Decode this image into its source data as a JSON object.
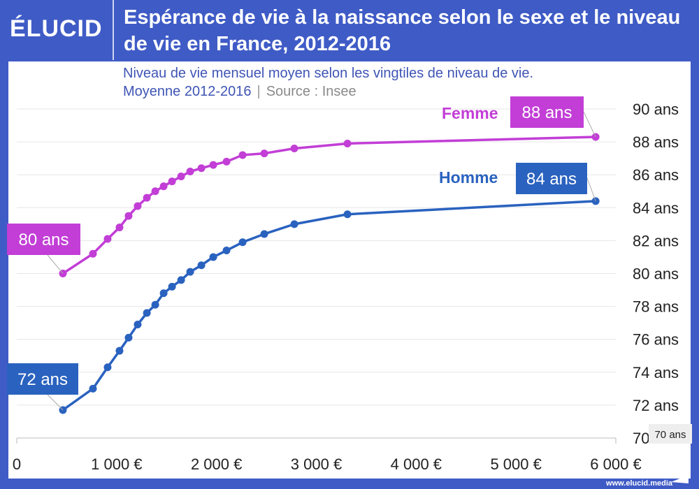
{
  "brand": {
    "logo": "ÉLUCID",
    "footer": "www.elucid.media"
  },
  "header": {
    "title": "Espérance de vie à la naissance selon le sexe et le niveau de vie en France, 2012-2016",
    "subtitle": "Niveau de vie mensuel moyen selon les vingtiles de niveau de vie.",
    "note": "Moyenne 2012-2016",
    "source": "Source : Insee"
  },
  "colors": {
    "frame": "#3f5bc6",
    "femme": "#c23ed6",
    "homme": "#2a62bf"
  },
  "chart_data": {
    "type": "line",
    "xlim": [
      0,
      6000
    ],
    "ylim": [
      70,
      90
    ],
    "grid": "horizontal",
    "x_ticks": [
      "0",
      "1 000 €",
      "2 000 €",
      "3 000 €",
      "4 000 €",
      "5 000 €",
      "6 000 €"
    ],
    "x_tick_values": [
      0,
      1000,
      2000,
      3000,
      4000,
      5000,
      6000
    ],
    "y_ticks": [
      "70",
      "72 ans",
      "74 ans",
      "76 ans",
      "78 ans",
      "80 ans",
      "82 ans",
      "84 ans",
      "86 ans",
      "88 ans",
      "90 ans"
    ],
    "y_tick_values": [
      70,
      72,
      74,
      76,
      78,
      80,
      82,
      84,
      86,
      88,
      90
    ],
    "y_min_badge": "70 ans",
    "series": [
      {
        "name": "Femme",
        "color": "#c23ed6",
        "start_label": "80 ans",
        "end_label": "88 ans",
        "x": [
          462,
          763,
          910,
          1029,
          1120,
          1211,
          1303,
          1387,
          1471,
          1555,
          1646,
          1737,
          1849,
          1968,
          2101,
          2262,
          2479,
          2780,
          3312,
          5798
        ],
        "y": [
          80.0,
          81.2,
          82.1,
          82.8,
          83.5,
          84.1,
          84.6,
          85.0,
          85.3,
          85.6,
          85.9,
          86.2,
          86.4,
          86.6,
          86.8,
          87.2,
          87.3,
          87.6,
          87.9,
          88.3
        ]
      },
      {
        "name": "Homme",
        "color": "#2a62bf",
        "start_label": "72 ans",
        "end_label": "84 ans",
        "x": [
          462,
          763,
          910,
          1029,
          1120,
          1211,
          1303,
          1387,
          1471,
          1555,
          1646,
          1737,
          1849,
          1968,
          2101,
          2262,
          2479,
          2780,
          3312,
          5798
        ],
        "y": [
          71.7,
          73.0,
          74.3,
          75.3,
          76.1,
          76.9,
          77.6,
          78.1,
          78.8,
          79.2,
          79.6,
          80.1,
          80.5,
          81.0,
          81.4,
          81.9,
          82.4,
          83.0,
          83.6,
          84.4
        ]
      }
    ]
  }
}
